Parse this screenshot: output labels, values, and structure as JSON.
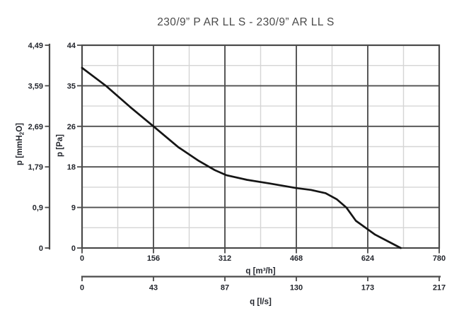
{
  "header": {
    "title": "230/9” P AR LL S - 230/9” AR LL S"
  },
  "chart_data": {
    "type": "line",
    "title": "230/9” P AR LL S - 230/9” AR LL S",
    "grid": {
      "major_color": "#4f4f4f",
      "minor_color": "#d5d5d5",
      "minors_between_majors": 1
    },
    "frame_color": "#4a4a4a",
    "text_color": "#23262d",
    "title_color": "#4a4a4a",
    "axes": {
      "y_outer": {
        "label": "p [mmH₂O]",
        "label_parts": [
          "p [mmH",
          "2",
          "O]"
        ],
        "tick_labels": [
          "4,49",
          "3,59",
          "2,69",
          "1,79",
          "0,9",
          "0"
        ]
      },
      "y_inner": {
        "label": "p [Pa]",
        "tick_labels": [
          "44",
          "35",
          "26",
          "18",
          "9",
          "0"
        ],
        "range": [
          0,
          44
        ]
      },
      "x_primary": {
        "label": "q [m³/h]",
        "tick_labels": [
          "0",
          "156",
          "312",
          "468",
          "624",
          "780"
        ],
        "range": [
          0,
          780
        ]
      },
      "x_secondary": {
        "label": "q [l/s]",
        "tick_labels": [
          "0",
          "43",
          "87",
          "130",
          "173",
          "217"
        ]
      }
    },
    "series": [
      {
        "name": "fan-performance-curve",
        "color": "#151515",
        "points_q_m3h_p_Pa": [
          [
            0,
            39.1
          ],
          [
            52,
            35.2
          ],
          [
            105,
            30.6
          ],
          [
            156,
            26.4
          ],
          [
            210,
            21.9
          ],
          [
            255,
            18.9
          ],
          [
            290,
            16.9
          ],
          [
            315,
            15.8
          ],
          [
            360,
            14.8
          ],
          [
            410,
            14.0
          ],
          [
            468,
            13.0
          ],
          [
            500,
            12.6
          ],
          [
            532,
            11.9
          ],
          [
            556,
            10.6
          ],
          [
            577,
            8.8
          ],
          [
            598,
            5.9
          ],
          [
            640,
            2.9
          ],
          [
            696,
            0
          ]
        ]
      }
    ]
  }
}
